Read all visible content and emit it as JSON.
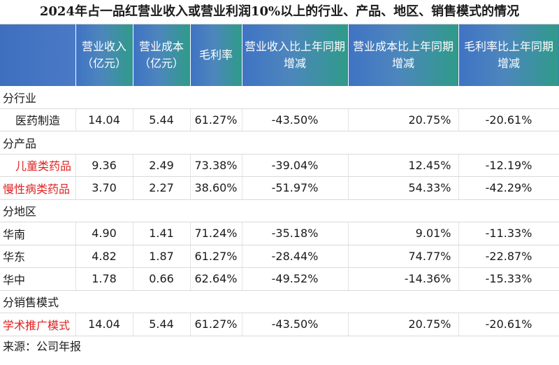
{
  "title": "2024年占一品红营业收入或营业利润10%以上的行业、产品、地区、销售模式的情况",
  "headers": [
    [
      "",
      ""
    ],
    [
      "营业收入",
      "（亿元）"
    ],
    [
      "营业成本",
      "（亿元）"
    ],
    [
      "毛利率",
      ""
    ],
    [
      "营业收入比上年同期",
      "增减"
    ],
    [
      "营业成本比上年同期",
      "增减"
    ],
    [
      "毛利率比上年同期",
      "增减"
    ]
  ],
  "sections": [
    {
      "category": "分行业",
      "rows": [
        {
          "label": "医药制造",
          "red": false,
          "revenue": "14.04",
          "cost": "5.44",
          "margin": "61.27%",
          "rev_chg": "-43.50%",
          "cost_chg": "20.75%",
          "margin_chg": "-20.61%"
        }
      ]
    },
    {
      "category": "分产品",
      "rows": [
        {
          "label": "儿童类药品",
          "red": true,
          "revenue": "9.36",
          "cost": "2.49",
          "margin": "73.38%",
          "rev_chg": "-39.04%",
          "cost_chg": "12.45%",
          "margin_chg": "-12.19%"
        },
        {
          "label": "慢性病类药品",
          "red": true,
          "revenue": "3.70",
          "cost": "2.27",
          "margin": "38.60%",
          "rev_chg": "-51.97%",
          "cost_chg": "54.33%",
          "margin_chg": "-42.29%"
        }
      ]
    },
    {
      "category": "分地区",
      "rows": [
        {
          "label": "华南",
          "red": false,
          "revenue": "4.90",
          "cost": "1.41",
          "margin": "71.24%",
          "rev_chg": "-35.18%",
          "cost_chg": "9.01%",
          "margin_chg": "-11.33%"
        },
        {
          "label": "华东",
          "red": false,
          "revenue": "4.82",
          "cost": "1.87",
          "margin": "61.27%",
          "rev_chg": "-28.44%",
          "cost_chg": "74.77%",
          "margin_chg": "-22.87%"
        },
        {
          "label": "华中",
          "red": false,
          "revenue": "1.78",
          "cost": "0.66",
          "margin": "62.64%",
          "rev_chg": "-49.52%",
          "cost_chg": "-14.36%",
          "margin_chg": "-15.33%"
        }
      ]
    },
    {
      "category": "分销售模式",
      "rows": [
        {
          "label": "学术推广模式",
          "red": true,
          "revenue": "14.04",
          "cost": "5.44",
          "margin": "61.27%",
          "rev_chg": "-43.50%",
          "cost_chg": "20.75%",
          "margin_chg": "-20.61%"
        }
      ]
    }
  ],
  "source": "来源：公司年报"
}
